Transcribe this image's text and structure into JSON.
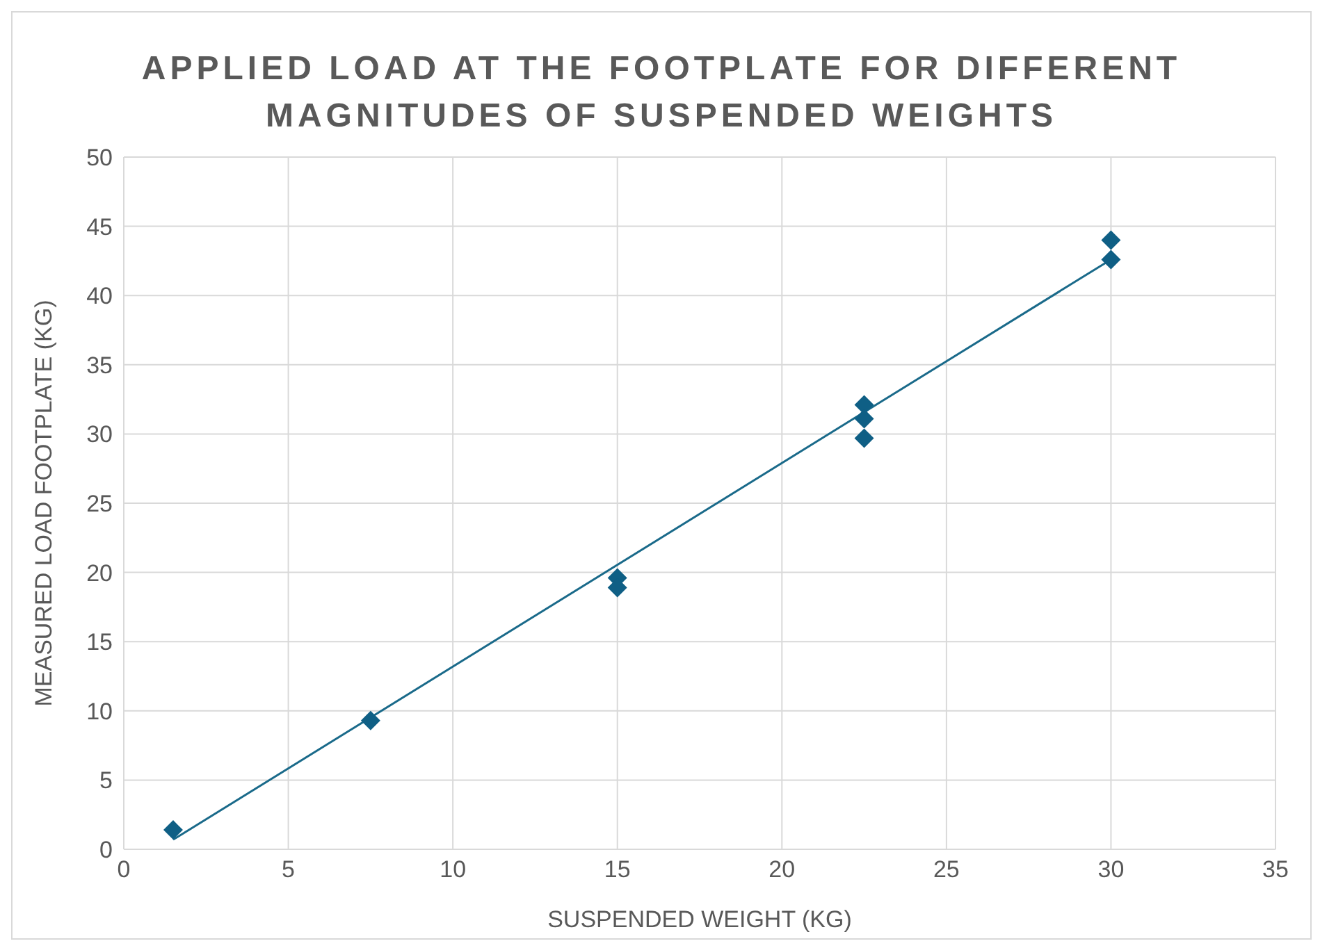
{
  "chart_data": {
    "type": "scatter",
    "title": "APPLIED LOAD AT THE FOOTPLATE FOR DIFFERENT MAGNITUDES OF SUSPENDED WEIGHTS",
    "xlabel": "SUSPENDED WEIGHT (KG)",
    "ylabel": "MEASURED  LOAD FOOTPLATE (KG)",
    "series": [
      {
        "marker": "diamond",
        "color": "#0f5f85",
        "x": [
          1.5,
          7.5,
          15,
          15,
          22.5,
          22.5,
          22.5,
          30,
          30
        ],
        "values": [
          1.4,
          9.3,
          19.6,
          18.9,
          32.1,
          31.1,
          29.7,
          44.0,
          42.6
        ]
      },
      {
        "type": "line",
        "marker": "none",
        "color": "#1a6a8a",
        "x": [
          1.5,
          30
        ],
        "values": [
          0.7,
          42.6
        ]
      }
    ],
    "line_style": "solid",
    "grid": true,
    "legend": false,
    "xlim": [
      0,
      35
    ],
    "xticks": [
      0,
      5,
      10,
      15,
      20,
      25,
      30,
      35
    ],
    "ylim": [
      0,
      50
    ],
    "yticks": [
      0,
      5,
      10,
      15,
      20,
      25,
      30,
      35,
      40,
      45,
      50
    ]
  }
}
